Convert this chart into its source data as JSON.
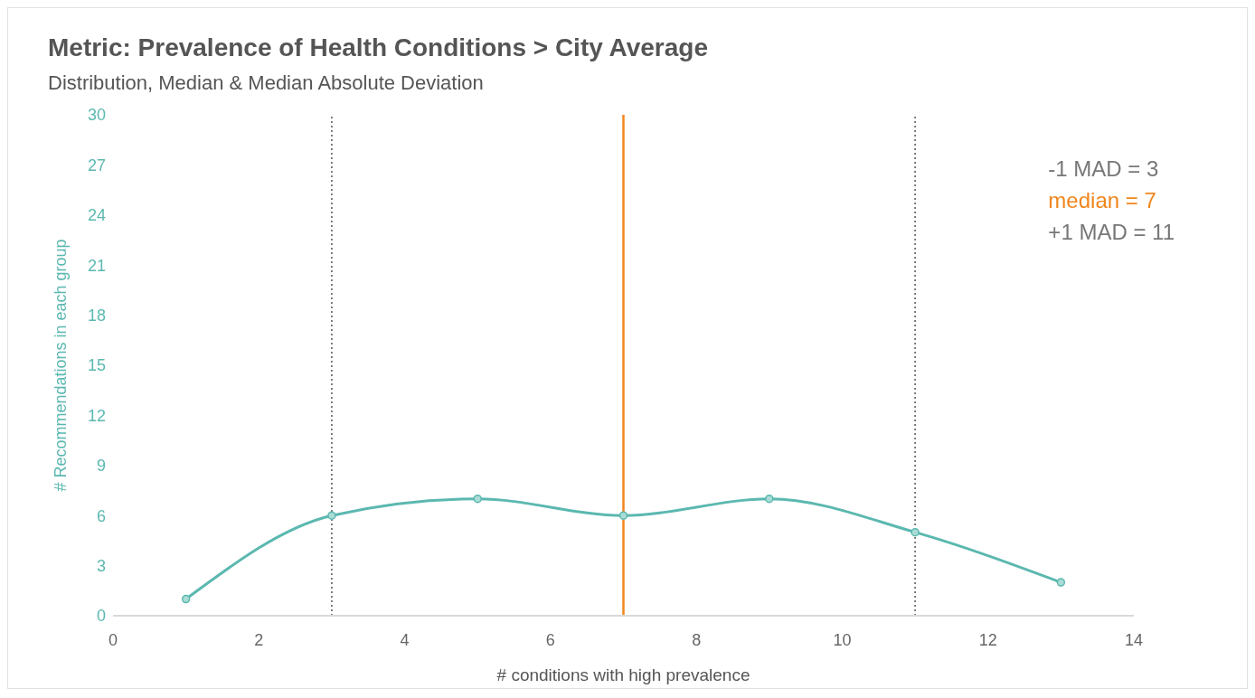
{
  "chart_data": {
    "type": "line",
    "title": "Metric: Prevalence of Health Conditions > City Average",
    "subtitle": "Distribution, Median & Median Absolute Deviation",
    "xlabel": "# conditions with high prevalence",
    "ylabel": "# Recommendations in each group",
    "x": [
      1,
      3,
      5,
      7,
      9,
      11,
      13
    ],
    "series": [
      {
        "color": "#5bb8b0",
        "values": [
          1,
          6,
          7,
          6,
          7,
          5,
          2
        ]
      }
    ],
    "xlim": [
      0,
      14
    ],
    "xticks": [
      0,
      2,
      4,
      6,
      8,
      10,
      12,
      14
    ],
    "ylim": [
      0,
      30
    ],
    "yticks": [
      0,
      3,
      6,
      9,
      12,
      15,
      18,
      21,
      24,
      27,
      30
    ],
    "ref_lines": [
      {
        "axis": "x",
        "value": 3,
        "color": "#555555",
        "line_style": "dotted"
      },
      {
        "axis": "x",
        "value": 7,
        "color": "#f0861c",
        "line_style": "solid"
      },
      {
        "axis": "x",
        "value": 11,
        "color": "#555555",
        "line_style": "dotted"
      }
    ],
    "annotations": [
      "-1 MAD = 3",
      "median = 7",
      "+1 MAD = 11"
    ],
    "grid": false,
    "legend": false,
    "marker": "circle",
    "line_style": "solid"
  }
}
